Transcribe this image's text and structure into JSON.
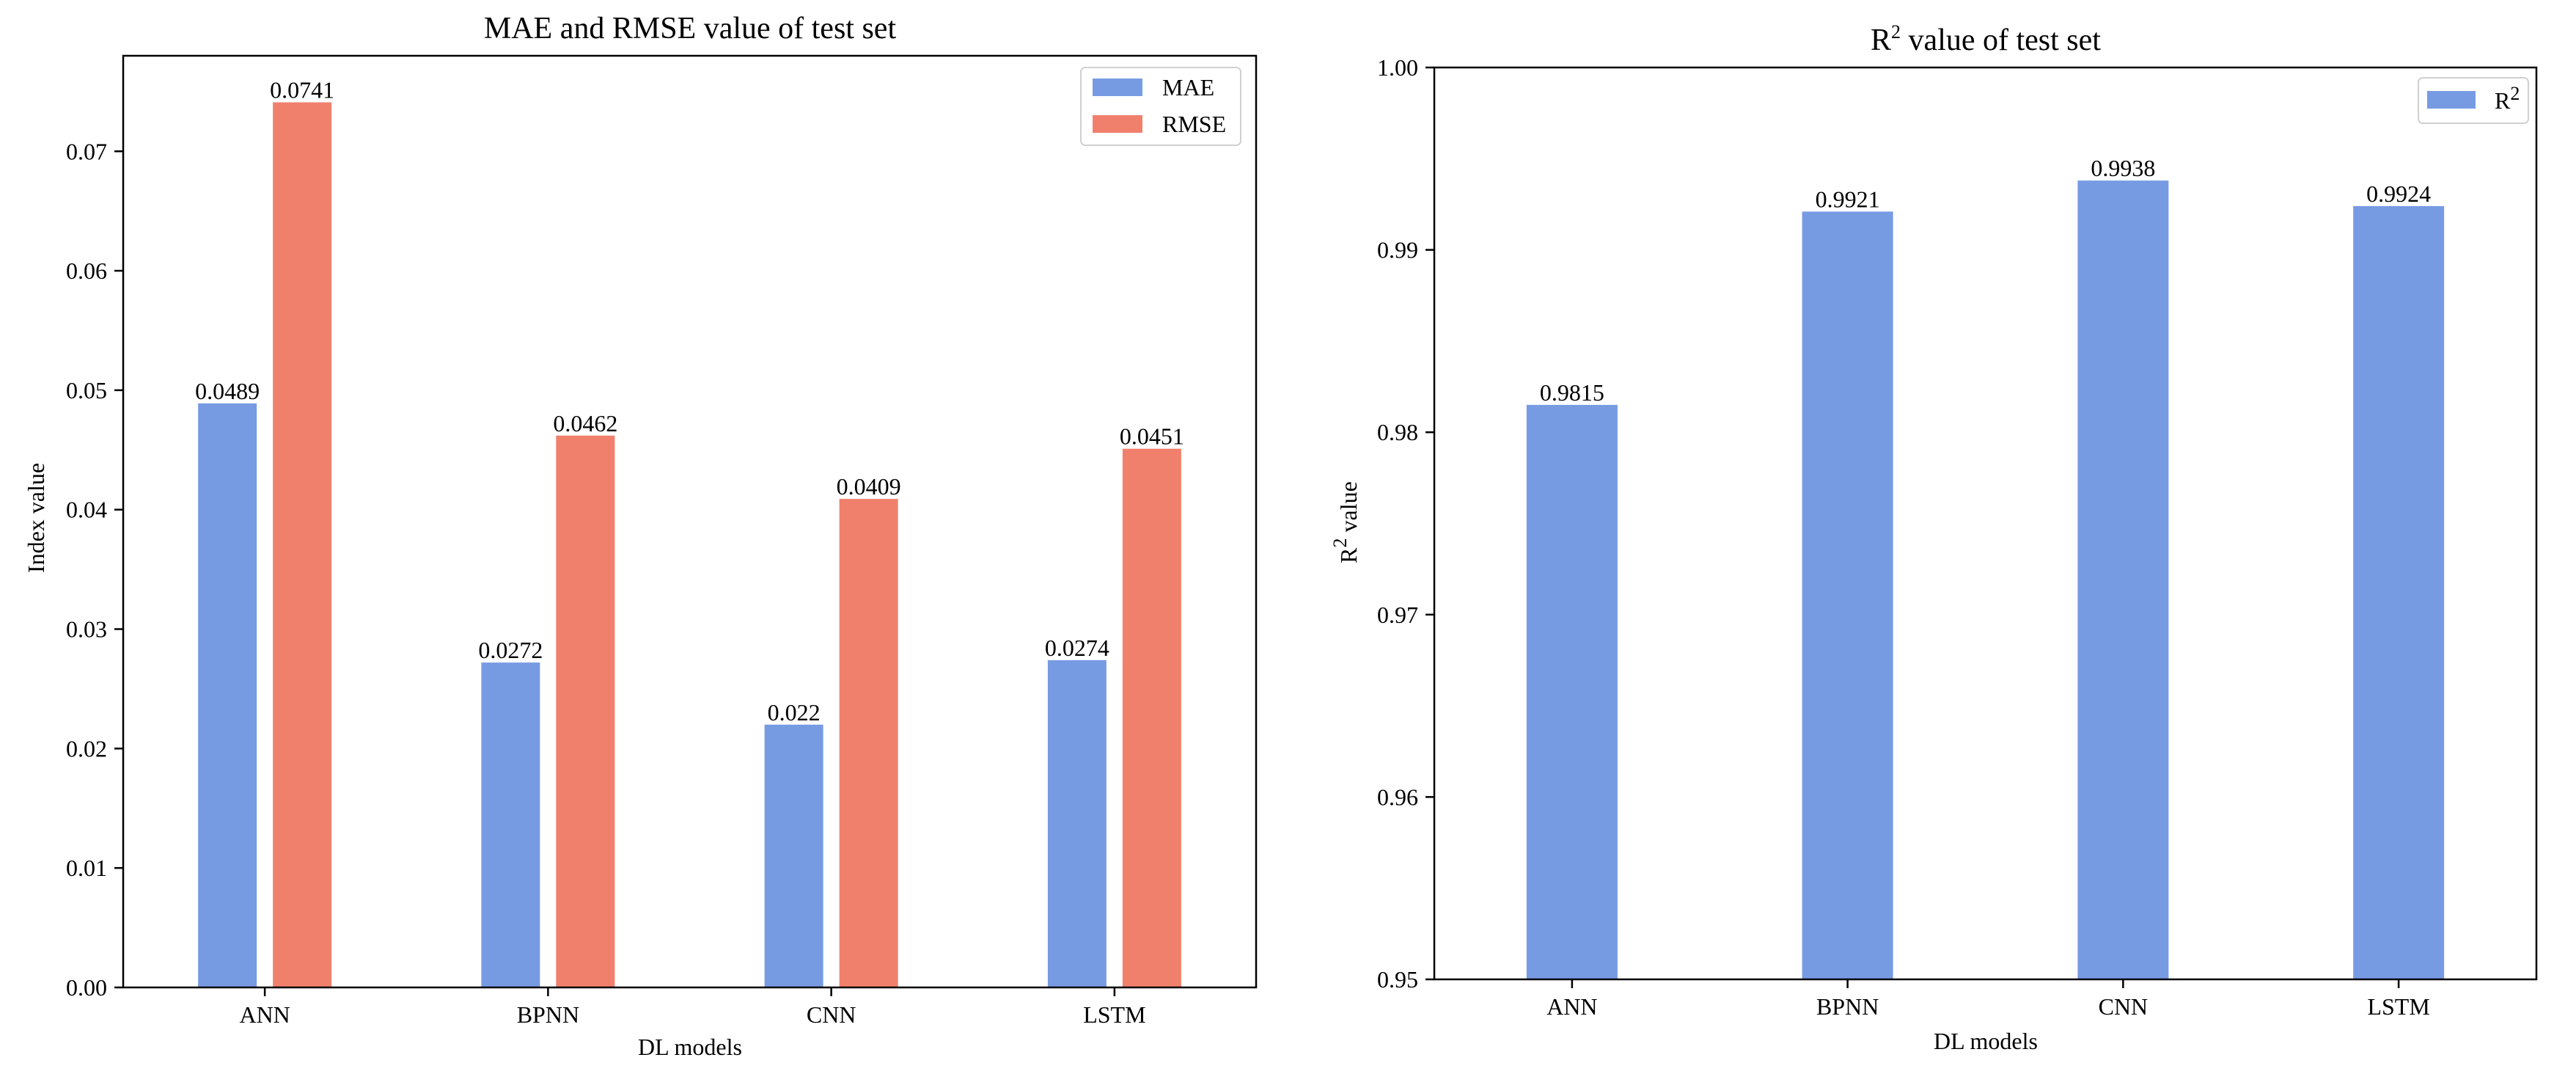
{
  "colors": {
    "mae": "#779BE3",
    "rmse": "#F0806C",
    "r2": "#779BE3"
  },
  "chart_data": [
    {
      "type": "bar",
      "title": "MAE and RMSE value of test set",
      "xlabel": "DL models",
      "ylabel": "Index value",
      "categories": [
        "ANN",
        "BPNN",
        "CNN",
        "LSTM"
      ],
      "series": [
        {
          "name": "MAE",
          "values": [
            0.0489,
            0.0272,
            0.022,
            0.0274
          ],
          "labels": [
            "0.0489",
            "0.0272",
            "0.022",
            "0.0274"
          ]
        },
        {
          "name": "RMSE",
          "values": [
            0.0741,
            0.0462,
            0.0409,
            0.0451
          ],
          "labels": [
            "0.0741",
            "0.0462",
            "0.0409",
            "0.0451"
          ]
        }
      ],
      "ylim": [
        0,
        0.078
      ],
      "yticks": [
        0,
        0.01,
        0.02,
        0.03,
        0.04,
        0.05,
        0.06,
        0.07
      ],
      "ytick_labels": [
        "0.00",
        "0.01",
        "0.02",
        "0.03",
        "0.04",
        "0.05",
        "0.06",
        "0.07"
      ],
      "legend": "top-right"
    },
    {
      "type": "bar",
      "title_main": "R",
      "title_sup": "2",
      "title_rest": " value of test set",
      "xlabel": "DL models",
      "ylabel_main": "R",
      "ylabel_sup": "2",
      "ylabel_rest": " value",
      "categories": [
        "ANN",
        "BPNN",
        "CNN",
        "LSTM"
      ],
      "series": [
        {
          "name_main": "R",
          "name_sup": "2",
          "values": [
            0.9815,
            0.9921,
            0.9938,
            0.9924
          ],
          "labels": [
            "0.9815",
            "0.9921",
            "0.9938",
            "0.9924"
          ]
        }
      ],
      "ylim": [
        0.95,
        1.0
      ],
      "yticks": [
        0.95,
        0.96,
        0.97,
        0.98,
        0.99,
        1.0
      ],
      "ytick_labels": [
        "0.95",
        "0.96",
        "0.97",
        "0.98",
        "0.99",
        "1.00"
      ],
      "legend": "top-right"
    }
  ]
}
